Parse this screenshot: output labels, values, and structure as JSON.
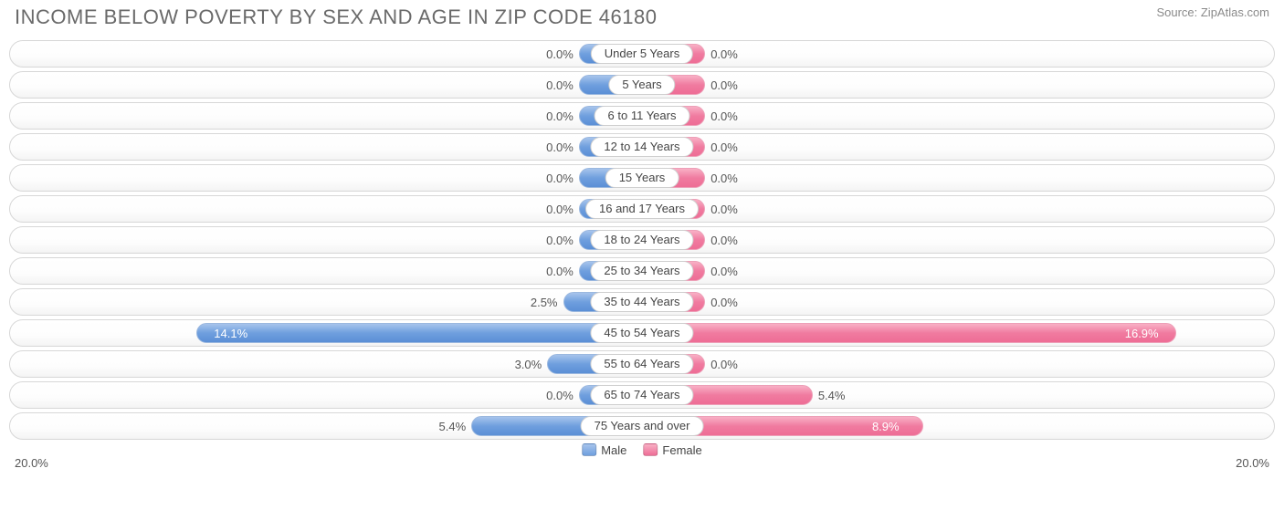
{
  "title": "INCOME BELOW POVERTY BY SEX AND AGE IN ZIP CODE 46180",
  "source": "Source: ZipAtlas.com",
  "chart": {
    "type": "diverging-bar",
    "axis_max_pct": 20.0,
    "axis_label_left": "20.0%",
    "axis_label_right": "20.0%",
    "min_bar_pct": 2.0,
    "track_border_color": "#d7d7d7",
    "track_bg_top": "#ffffff",
    "track_bg_bottom": "#f4f4f4",
    "male_color_top": "#a7c4ec",
    "male_color_bottom": "#5b8fd6",
    "female_color_top": "#f8b0c5",
    "female_color_bottom": "#ee6d96",
    "label_font_size": 13,
    "title_font_size": 22,
    "title_color": "#6a6a6a",
    "value_text_color": "#555555",
    "value_text_color_on_bar": "#ffffff",
    "legend": {
      "male": "Male",
      "female": "Female"
    },
    "rows": [
      {
        "category": "Under 5 Years",
        "male_pct": 0.0,
        "female_pct": 0.0,
        "male_label": "0.0%",
        "female_label": "0.0%"
      },
      {
        "category": "5 Years",
        "male_pct": 0.0,
        "female_pct": 0.0,
        "male_label": "0.0%",
        "female_label": "0.0%"
      },
      {
        "category": "6 to 11 Years",
        "male_pct": 0.0,
        "female_pct": 0.0,
        "male_label": "0.0%",
        "female_label": "0.0%"
      },
      {
        "category": "12 to 14 Years",
        "male_pct": 0.0,
        "female_pct": 0.0,
        "male_label": "0.0%",
        "female_label": "0.0%"
      },
      {
        "category": "15 Years",
        "male_pct": 0.0,
        "female_pct": 0.0,
        "male_label": "0.0%",
        "female_label": "0.0%"
      },
      {
        "category": "16 and 17 Years",
        "male_pct": 0.0,
        "female_pct": 0.0,
        "male_label": "0.0%",
        "female_label": "0.0%"
      },
      {
        "category": "18 to 24 Years",
        "male_pct": 0.0,
        "female_pct": 0.0,
        "male_label": "0.0%",
        "female_label": "0.0%"
      },
      {
        "category": "25 to 34 Years",
        "male_pct": 0.0,
        "female_pct": 0.0,
        "male_label": "0.0%",
        "female_label": "0.0%"
      },
      {
        "category": "35 to 44 Years",
        "male_pct": 2.5,
        "female_pct": 0.0,
        "male_label": "2.5%",
        "female_label": "0.0%"
      },
      {
        "category": "45 to 54 Years",
        "male_pct": 14.1,
        "female_pct": 16.9,
        "male_label": "14.1%",
        "female_label": "16.9%"
      },
      {
        "category": "55 to 64 Years",
        "male_pct": 3.0,
        "female_pct": 0.0,
        "male_label": "3.0%",
        "female_label": "0.0%"
      },
      {
        "category": "65 to 74 Years",
        "male_pct": 0.0,
        "female_pct": 5.4,
        "male_label": "0.0%",
        "female_label": "5.4%"
      },
      {
        "category": "75 Years and over",
        "male_pct": 5.4,
        "female_pct": 8.9,
        "male_label": "5.4%",
        "female_label": "8.9%"
      }
    ]
  }
}
